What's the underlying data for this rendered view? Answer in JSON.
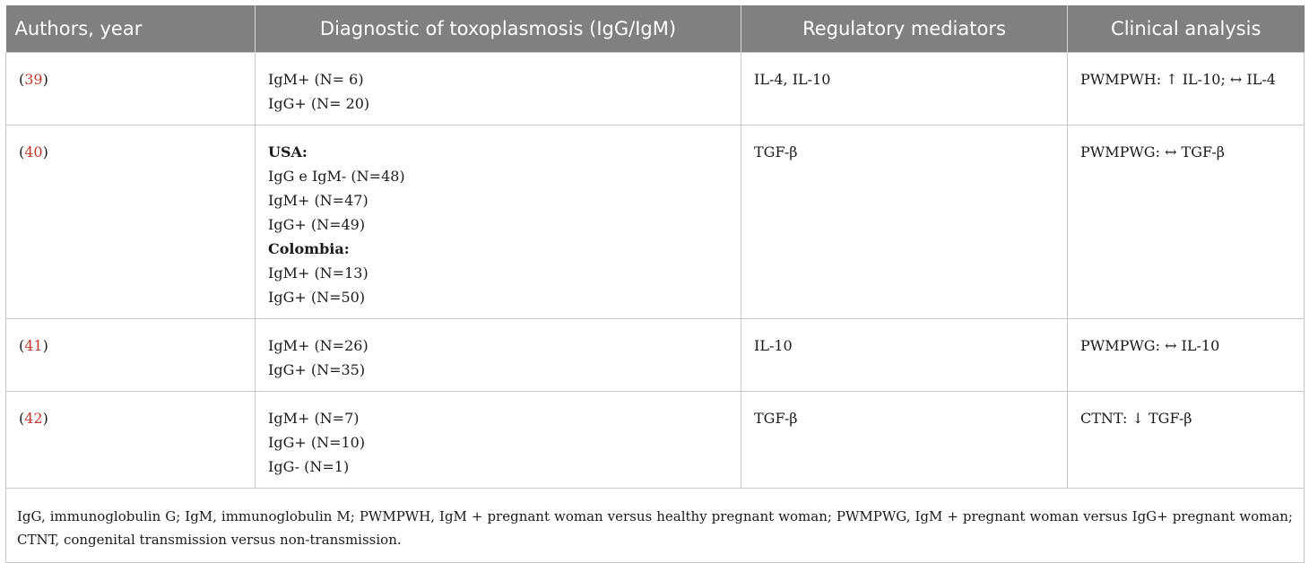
{
  "table": {
    "headers": [
      "Authors, year",
      "Diagnostic of toxoplasmosis (IgG/IgM)",
      "Regulatory mediators",
      "Clinical analysis"
    ],
    "rows": [
      {
        "ref": "39",
        "diagnostic": [
          {
            "text": "IgM+ (N= 6)",
            "bold": false
          },
          {
            "text": "IgG+ (N= 20)",
            "bold": false
          }
        ],
        "mediators": "IL-4, IL-10",
        "clinical": "PWMPWH: ↑ IL-10; ↔ IL-4"
      },
      {
        "ref": "40",
        "diagnostic": [
          {
            "text": "USA:",
            "bold": true
          },
          {
            "text": "IgG e IgM- (N=48)",
            "bold": false
          },
          {
            "text": "IgM+ (N=47)",
            "bold": false
          },
          {
            "text": "IgG+ (N=49)",
            "bold": false
          },
          {
            "text": "Colombia:",
            "bold": true
          },
          {
            "text": "IgM+ (N=13)",
            "bold": false
          },
          {
            "text": "IgG+ (N=50)",
            "bold": false
          }
        ],
        "mediators": "TGF-β",
        "clinical": "PWMPWG: ↔ TGF-β"
      },
      {
        "ref": "41",
        "diagnostic": [
          {
            "text": "IgM+ (N=26)",
            "bold": false
          },
          {
            "text": "IgG+ (N=35)",
            "bold": false
          }
        ],
        "mediators": "IL-10",
        "clinical": "PWMPWG: ↔ IL-10"
      },
      {
        "ref": "42",
        "diagnostic": [
          {
            "text": "IgM+ (N=7)",
            "bold": false
          },
          {
            "text": "IgG+ (N=10)",
            "bold": false
          },
          {
            "text": "IgG- (N=1)",
            "bold": false
          }
        ],
        "mediators": "TGF-β",
        "clinical": "CTNT: ↓ TGF-β"
      }
    ],
    "footnote": "IgG, immunoglobulin G; IgM, immunoglobulin M; PWMPWH, IgM + pregnant woman versus healthy pregnant woman; PWMPWG, IgM + pregnant woman versus IgG+ pregnant woman; CTNT, congenital transmission versus non-transmission.",
    "colors": {
      "header_bg": "#808080",
      "header_text": "#ffffff",
      "ref_link": "#c0392b",
      "border": "#c8c8c8"
    }
  }
}
